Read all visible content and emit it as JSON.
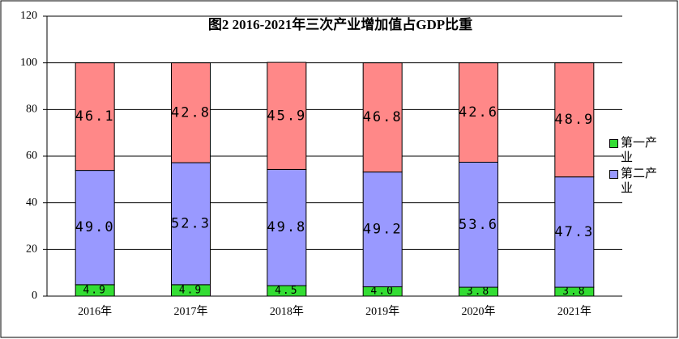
{
  "chart_data": {
    "type": "stacked_bar",
    "title": "图2 2016-2021年三次产业增加值占GDP比重",
    "categories": [
      "2016年",
      "2017年",
      "2018年",
      "2019年",
      "2020年",
      "2021年"
    ],
    "series": [
      {
        "name": "第一产业",
        "color": "#33dd33",
        "values": [
          4.9,
          4.9,
          4.5,
          4.0,
          3.8,
          3.8
        ],
        "value_labels": [
          "4.9",
          "4.9",
          "4.5",
          "4.0",
          "3.8",
          "3.8"
        ]
      },
      {
        "name": "第二产业",
        "color": "#9999ff",
        "values": [
          49.0,
          52.3,
          49.8,
          49.2,
          53.6,
          47.3
        ],
        "value_labels": [
          "49.0",
          "52.3",
          "49.8",
          "49.2",
          "53.6",
          "47.3"
        ]
      },
      {
        "color": "#ff8888",
        "values": [
          46.1,
          42.8,
          45.9,
          46.8,
          42.6,
          48.9
        ],
        "value_labels": [
          "46.1",
          "42.8",
          "45.9",
          "46.8",
          "42.6",
          "48.9"
        ]
      }
    ],
    "ylim": [
      0,
      120
    ],
    "yticks": [
      0,
      20,
      40,
      60,
      80,
      100,
      120
    ],
    "grid": true
  }
}
